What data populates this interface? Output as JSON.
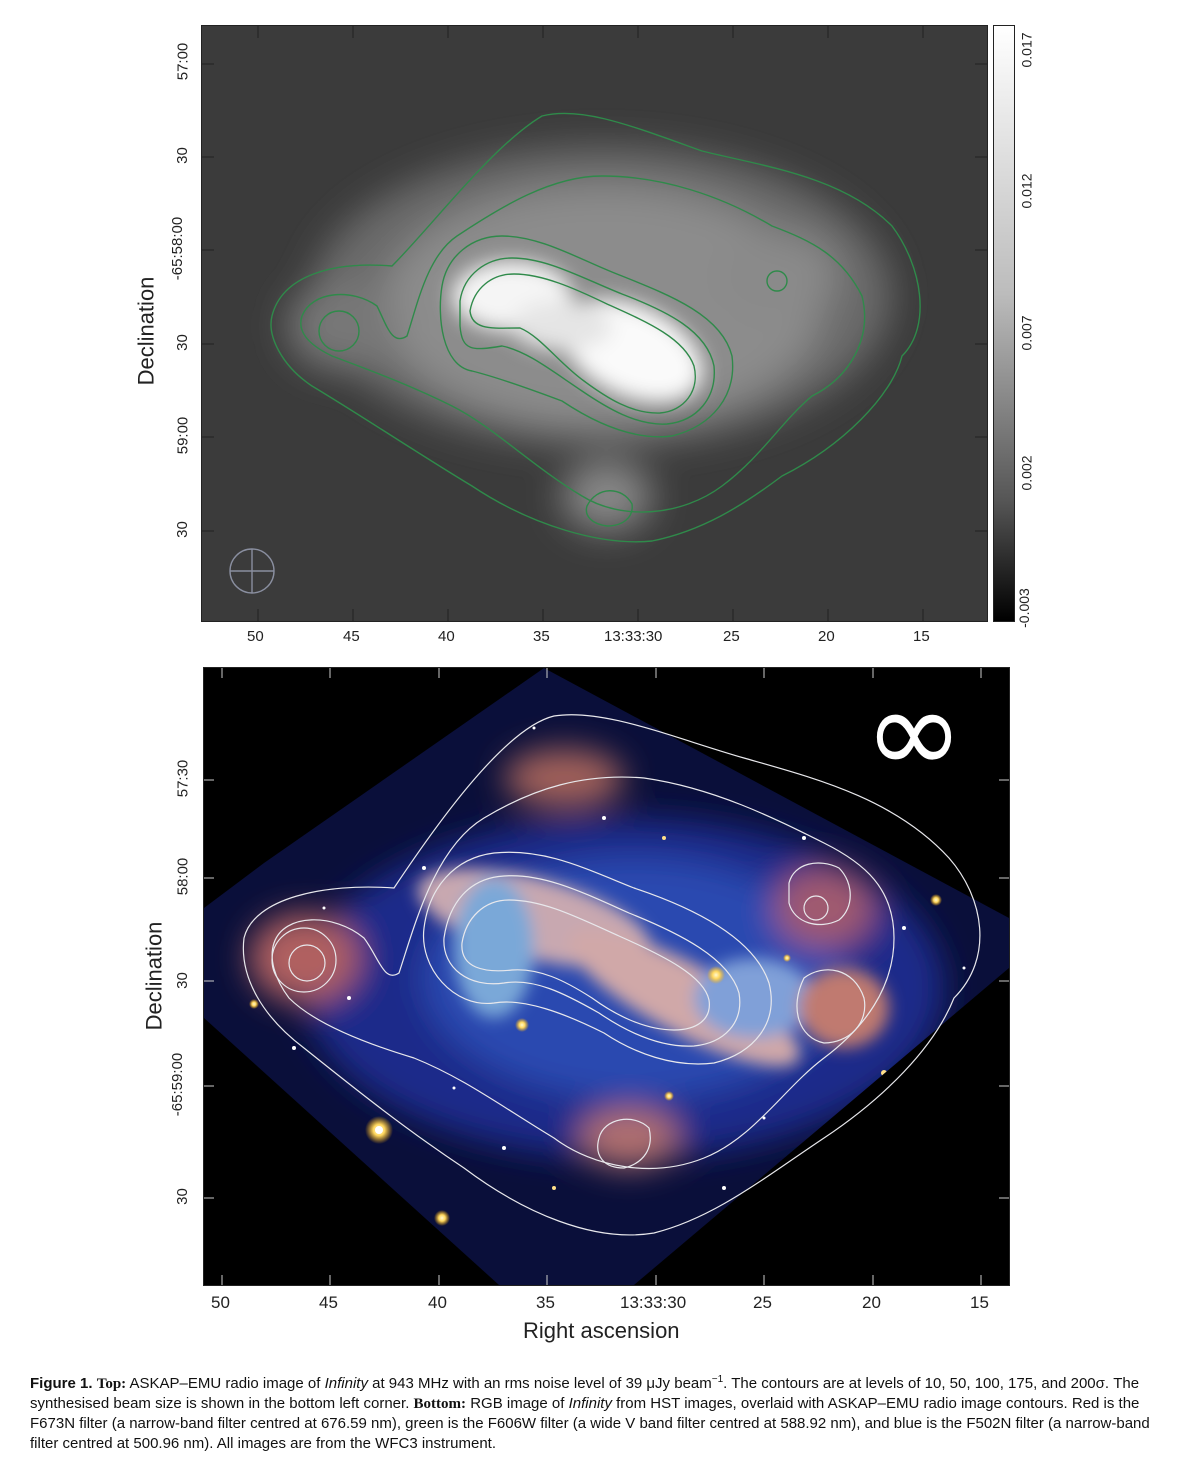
{
  "top_panel": {
    "ylabel": "Declination",
    "y_ticks": [
      "57:00",
      "30",
      "-65:58:00",
      "30",
      "59:00",
      "30"
    ],
    "x_ticks": [
      "50",
      "45",
      "40",
      "35",
      "13:33:30",
      "25",
      "20",
      "15"
    ],
    "colorbar_ticks": [
      "0.017",
      "0.012",
      "0.007",
      "0.002",
      "-0.003"
    ],
    "contour_color": "#2f8a4a"
  },
  "bottom_panel": {
    "ylabel": "Declination",
    "xlabel": "Right ascension",
    "y_ticks": [
      "57:30",
      "58:00",
      "30",
      "-65:59:00",
      "30"
    ],
    "x_ticks": [
      "50",
      "45",
      "40",
      "35",
      "13:33:30",
      "25",
      "20",
      "15"
    ],
    "infinity_symbol": "∞"
  },
  "caption": {
    "figure_label": "Figure 1.",
    "top_label": "Top:",
    "part1": "ASKAP–EMU radio image of",
    "name": "Infinity",
    "part2": "at 943 MHz with an rms noise level of 39 μJy beam",
    "superscript": "−1",
    "part3": ". The contours are at levels of 10, 50, 100, 175, and 200σ. The synthesised beam size is shown in the bottom left corner.",
    "bottom_label": "Bottom:",
    "part4": "RGB image of",
    "part5": "from HST images, overlaid with ASKAP–EMU radio image contours. Red is the F673N filter (a narrow-band filter centred at 676.59 nm), green is the F606W filter (a wide V band filter centred at 588.92 nm), and blue is the F502N filter (a narrow-band filter centred at 500.96 nm). All images are from the WFC3 instrument."
  }
}
